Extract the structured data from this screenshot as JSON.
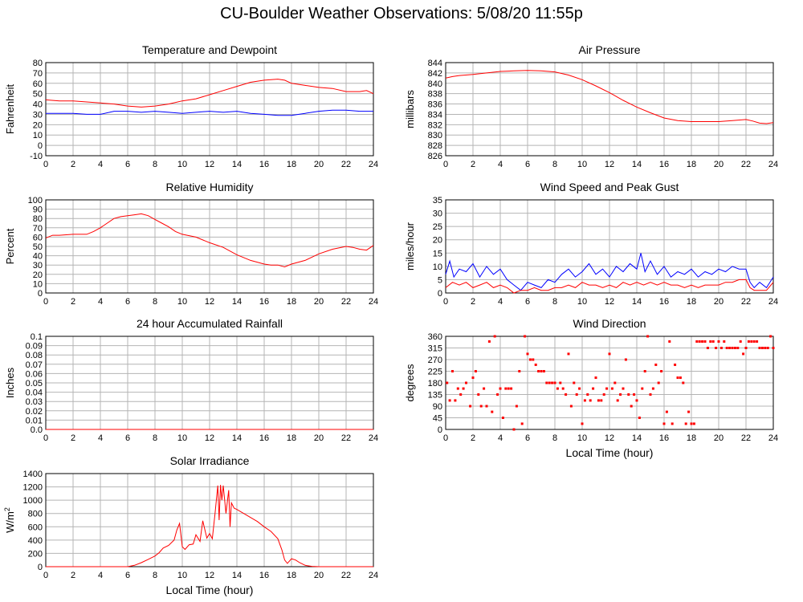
{
  "page": {
    "title": "CU-Boulder Weather Observations: 5/08/20 11:55p"
  },
  "colors": {
    "primary": "#ff0000",
    "secondary": "#0000ff",
    "grid": "#b4b4b4"
  },
  "chart_data": [
    {
      "id": "temp",
      "type": "line",
      "title": "Temperature and Dewpoint",
      "ylabel": "Fahrenheit",
      "xlabel": "",
      "xlim": [
        0,
        24
      ],
      "ylim": [
        -10,
        80
      ],
      "yticks": [
        -10,
        0,
        10,
        20,
        30,
        40,
        50,
        60,
        70,
        80
      ],
      "xticks": [
        0,
        2,
        4,
        6,
        8,
        10,
        12,
        14,
        16,
        18,
        20,
        22,
        24
      ],
      "series": [
        {
          "color": "#ff0000",
          "x": [
            0,
            1,
            2,
            3,
            4,
            5,
            6,
            7,
            8,
            9,
            10,
            11,
            12,
            13,
            14,
            15,
            16,
            17,
            17.5,
            18,
            19,
            20,
            21,
            22,
            23,
            23.5,
            24
          ],
          "y": [
            44,
            43,
            43,
            42,
            41,
            40,
            38,
            37,
            38,
            40,
            43,
            45,
            49,
            53,
            57,
            61,
            63,
            64,
            63,
            60,
            58,
            56,
            55,
            52,
            52,
            53,
            50
          ]
        },
        {
          "color": "#0000ff",
          "x": [
            0,
            2,
            3,
            4,
            5,
            6,
            7,
            8,
            9,
            10,
            11,
            12,
            13,
            14,
            15,
            16,
            17,
            18,
            19,
            20,
            21,
            22,
            23,
            24
          ],
          "y": [
            31,
            31,
            30,
            30,
            33,
            33,
            32,
            33,
            32,
            31,
            32,
            33,
            32,
            33,
            31,
            30,
            29,
            29,
            31,
            33,
            34,
            34,
            33,
            33
          ]
        }
      ]
    },
    {
      "id": "pressure",
      "type": "line",
      "title": "Air Pressure",
      "ylabel": "millibars",
      "xlabel": "",
      "xlim": [
        0,
        24
      ],
      "ylim": [
        826,
        844
      ],
      "yticks": [
        826,
        828,
        830,
        832,
        834,
        836,
        838,
        840,
        842,
        844
      ],
      "yticklabels": [
        "826",
        "828",
        "830",
        "832",
        "834",
        "836",
        "838",
        "840",
        "842",
        "844"
      ],
      "xticks": [
        0,
        2,
        4,
        6,
        8,
        10,
        12,
        14,
        16,
        18,
        20,
        22,
        24
      ],
      "series": [
        {
          "color": "#ff0000",
          "x": [
            0,
            0.5,
            1,
            2,
            3,
            4,
            5,
            6,
            7,
            8,
            9,
            10,
            11,
            12,
            13,
            14,
            15,
            16,
            17,
            18,
            19,
            20,
            21,
            22,
            22.5,
            23,
            23.5,
            24
          ],
          "y": [
            841,
            841.3,
            841.5,
            841.7,
            842.0,
            842.3,
            842.4,
            842.5,
            842.4,
            842.2,
            841.6,
            840.7,
            839.5,
            838.2,
            836.7,
            835.4,
            834.3,
            833.3,
            832.8,
            832.6,
            832.6,
            832.6,
            832.8,
            833.0,
            832.7,
            832.3,
            832.2,
            832.4
          ]
        }
      ]
    },
    {
      "id": "humidity",
      "type": "line",
      "title": "Relative Humidity",
      "ylabel": "Percent",
      "xlabel": "",
      "xlim": [
        0,
        24
      ],
      "ylim": [
        0,
        100
      ],
      "yticks": [
        0,
        10,
        20,
        30,
        40,
        50,
        60,
        70,
        80,
        90,
        100
      ],
      "xticks": [
        0,
        2,
        4,
        6,
        8,
        10,
        12,
        14,
        16,
        18,
        20,
        22,
        24
      ],
      "series": [
        {
          "color": "#ff0000",
          "x": [
            0,
            0.5,
            1,
            2,
            3,
            3.5,
            4,
            4.5,
            5,
            5.5,
            6,
            6.5,
            7,
            7.5,
            8,
            8.5,
            9,
            9.5,
            10,
            11,
            12,
            13,
            14,
            15,
            16,
            16.5,
            17,
            17.5,
            18,
            19,
            20,
            21,
            22,
            22.5,
            23,
            23.5,
            24
          ],
          "y": [
            59,
            62,
            62,
            63,
            63,
            66,
            70,
            75,
            80,
            82,
            83,
            84,
            85,
            83,
            79,
            75,
            71,
            66,
            63,
            60,
            54,
            49,
            41,
            35,
            31,
            30,
            30,
            28,
            31,
            35,
            42,
            47,
            50,
            49,
            47,
            46,
            51
          ]
        }
      ]
    },
    {
      "id": "wind",
      "type": "line",
      "title": "Wind Speed and Peak Gust",
      "ylabel": "miles/hour",
      "xlabel": "",
      "xlim": [
        0,
        24
      ],
      "ylim": [
        0,
        35
      ],
      "yticks": [
        0,
        5,
        10,
        15,
        20,
        25,
        30,
        35
      ],
      "xticks": [
        0,
        2,
        4,
        6,
        8,
        10,
        12,
        14,
        16,
        18,
        20,
        22,
        24
      ],
      "series": [
        {
          "color": "#0000ff",
          "x": [
            0,
            0.3,
            0.6,
            1,
            1.5,
            2,
            2.5,
            3,
            3.5,
            4,
            4.5,
            5,
            5.5,
            6,
            6.5,
            7,
            7.5,
            8,
            8.5,
            9,
            9.5,
            10,
            10.5,
            11,
            11.5,
            12,
            12.5,
            13,
            13.5,
            14,
            14.3,
            14.6,
            15,
            15.5,
            16,
            16.5,
            17,
            17.5,
            18,
            18.5,
            19,
            19.5,
            20,
            20.5,
            21,
            21.5,
            22,
            22.3,
            22.6,
            23,
            23.5,
            24
          ],
          "y": [
            7,
            12,
            6,
            9,
            8,
            11,
            6,
            10,
            7,
            9,
            5,
            3,
            1,
            4,
            3,
            2,
            5,
            4,
            7,
            9,
            6,
            8,
            11,
            7,
            9,
            6,
            10,
            8,
            11,
            9,
            15,
            8,
            12,
            7,
            10,
            6,
            8,
            7,
            9,
            6,
            8,
            7,
            9,
            8,
            10,
            9,
            9,
            4,
            2,
            4,
            2,
            6
          ]
        },
        {
          "color": "#ff0000",
          "x": [
            0,
            0.5,
            1,
            1.5,
            2,
            2.5,
            3,
            3.5,
            4,
            4.5,
            5,
            5.5,
            6,
            6.5,
            7,
            7.5,
            8,
            8.5,
            9,
            9.5,
            10,
            10.5,
            11,
            11.5,
            12,
            12.5,
            13,
            13.5,
            14,
            14.5,
            15,
            15.5,
            16,
            16.5,
            17,
            17.5,
            18,
            18.5,
            19,
            19.5,
            20,
            20.5,
            21,
            21.5,
            22,
            22.3,
            22.6,
            23,
            23.5,
            24
          ],
          "y": [
            2,
            4,
            3,
            4,
            2,
            3,
            4,
            2,
            3,
            2,
            0,
            1,
            1,
            2,
            1,
            1,
            2,
            2,
            3,
            2,
            4,
            3,
            3,
            2,
            3,
            2,
            4,
            3,
            4,
            3,
            4,
            3,
            4,
            3,
            3,
            2,
            3,
            2,
            3,
            3,
            3,
            4,
            4,
            5,
            5,
            2,
            1,
            1,
            1,
            4
          ]
        }
      ]
    },
    {
      "id": "rain",
      "type": "line",
      "title": "24 hour Accumulated Rainfall",
      "ylabel": "Inches",
      "xlabel": "",
      "xlim": [
        0,
        24
      ],
      "ylim": [
        0,
        0.1
      ],
      "yticks": [
        0,
        0.01,
        0.02,
        0.03,
        0.04,
        0.05,
        0.06,
        0.07,
        0.08,
        0.09,
        0.1
      ],
      "yticklabels": [
        "0.0",
        "0.01",
        "0.02",
        "0.03",
        "0.04",
        "0.05",
        "0.06",
        "0.07",
        "0.08",
        "0.09",
        "0.1"
      ],
      "xticks": [
        0,
        2,
        4,
        6,
        8,
        10,
        12,
        14,
        16,
        18,
        20,
        22,
        24
      ],
      "series": [
        {
          "color": "#ff0000",
          "x": [
            0,
            24
          ],
          "y": [
            0,
            0
          ]
        }
      ]
    },
    {
      "id": "winddir",
      "type": "scatter",
      "title": "Wind Direction",
      "ylabel": "degrees",
      "xlabel": "Local Time (hour)",
      "xlim": [
        0,
        24
      ],
      "ylim": [
        0,
        360
      ],
      "yticks": [
        0,
        45,
        90,
        135,
        180,
        225,
        270,
        315,
        360
      ],
      "xticks": [
        0,
        2,
        4,
        6,
        8,
        10,
        12,
        14,
        16,
        18,
        20,
        22,
        24
      ],
      "series": [
        {
          "color": "#ff0000",
          "x": [
            0.1,
            0.3,
            0.5,
            0.7,
            0.9,
            1.1,
            1.3,
            1.5,
            1.8,
            2.0,
            2.2,
            2.4,
            2.6,
            2.8,
            3.0,
            3.2,
            3.4,
            3.6,
            3.8,
            4.0,
            4.2,
            4.4,
            4.6,
            4.8,
            5.0,
            5.2,
            5.4,
            5.6,
            5.8,
            6.0,
            6.2,
            6.4,
            6.6,
            6.8,
            7.0,
            7.2,
            7.4,
            7.6,
            7.8,
            8.0,
            8.2,
            8.4,
            8.6,
            8.8,
            9.0,
            9.2,
            9.4,
            9.6,
            9.8,
            10.0,
            10.2,
            10.4,
            10.6,
            10.8,
            11.0,
            11.2,
            11.4,
            11.6,
            11.8,
            12.0,
            12.2,
            12.4,
            12.6,
            12.8,
            13.0,
            13.2,
            13.4,
            13.6,
            13.8,
            14.0,
            14.2,
            14.4,
            14.6,
            14.8,
            15.0,
            15.2,
            15.4,
            15.6,
            15.8,
            16.0,
            16.2,
            16.4,
            16.6,
            16.8,
            17.0,
            17.2,
            17.4,
            17.6,
            17.8,
            18.0,
            18.2,
            18.4,
            18.6,
            18.8,
            19.0,
            19.2,
            19.4,
            19.6,
            19.8,
            20.0,
            20.2,
            20.4,
            20.6,
            20.8,
            21.0,
            21.2,
            21.4,
            21.6,
            21.8,
            22.0,
            22.2,
            22.4,
            22.6,
            22.8,
            23.0,
            23.2,
            23.4,
            23.6,
            23.8,
            24.0
          ],
          "y": [
            180,
            112,
            225,
            112,
            158,
            135,
            158,
            180,
            90,
            200,
            225,
            135,
            90,
            158,
            90,
            340,
            68,
            360,
            135,
            158,
            45,
            158,
            158,
            158,
            0,
            90,
            225,
            22,
            360,
            292,
            270,
            270,
            250,
            225,
            225,
            225,
            180,
            180,
            180,
            180,
            158,
            180,
            158,
            135,
            292,
            90,
            180,
            135,
            158,
            22,
            112,
            135,
            112,
            158,
            200,
            112,
            112,
            135,
            158,
            292,
            158,
            180,
            112,
            135,
            158,
            270,
            135,
            90,
            135,
            112,
            45,
            158,
            225,
            360,
            135,
            158,
            250,
            180,
            225,
            22,
            68,
            340,
            22,
            250,
            200,
            200,
            180,
            22,
            68,
            22,
            22,
            340,
            340,
            340,
            340,
            315,
            340,
            340,
            315,
            340,
            315,
            340,
            315,
            315,
            315,
            315,
            315,
            340,
            292,
            315,
            340,
            340,
            340,
            340,
            315,
            315,
            315,
            315,
            360,
            315
          ]
        }
      ]
    },
    {
      "id": "solar",
      "type": "line",
      "title": "Solar Irradiance",
      "ylabel": "W/m",
      "ylabel_sup": "2",
      "xlabel": "Local Time (hour)",
      "xlim": [
        0,
        24
      ],
      "ylim": [
        0,
        1400
      ],
      "yticks": [
        0,
        200,
        400,
        600,
        800,
        1000,
        1200,
        1400
      ],
      "xticks": [
        0,
        2,
        4,
        6,
        8,
        10,
        12,
        14,
        16,
        18,
        20,
        22,
        24
      ],
      "series": [
        {
          "color": "#ff0000",
          "x": [
            0,
            6,
            6.5,
            7,
            7.5,
            8,
            8.3,
            8.6,
            9,
            9.4,
            9.6,
            9.8,
            10,
            10.2,
            10.5,
            10.8,
            11,
            11.3,
            11.5,
            11.8,
            12,
            12.2,
            12.4,
            12.6,
            12.7,
            12.8,
            12.9,
            13.0,
            13.2,
            13.4,
            13.5,
            13.6,
            13.8,
            14,
            14.5,
            15,
            15.5,
            16,
            16.5,
            17,
            17.3,
            17.5,
            17.7,
            18,
            18.3,
            18.6,
            19,
            19.5,
            20,
            24
          ],
          "y": [
            0,
            0,
            20,
            60,
            110,
            160,
            210,
            280,
            320,
            400,
            550,
            650,
            300,
            260,
            330,
            340,
            480,
            380,
            690,
            430,
            500,
            420,
            800,
            1220,
            700,
            1230,
            1000,
            1220,
            800,
            1150,
            600,
            960,
            880,
            860,
            800,
            740,
            680,
            600,
            530,
            420,
            250,
            100,
            50,
            120,
            100,
            60,
            20,
            5,
            0,
            0
          ]
        }
      ]
    }
  ]
}
